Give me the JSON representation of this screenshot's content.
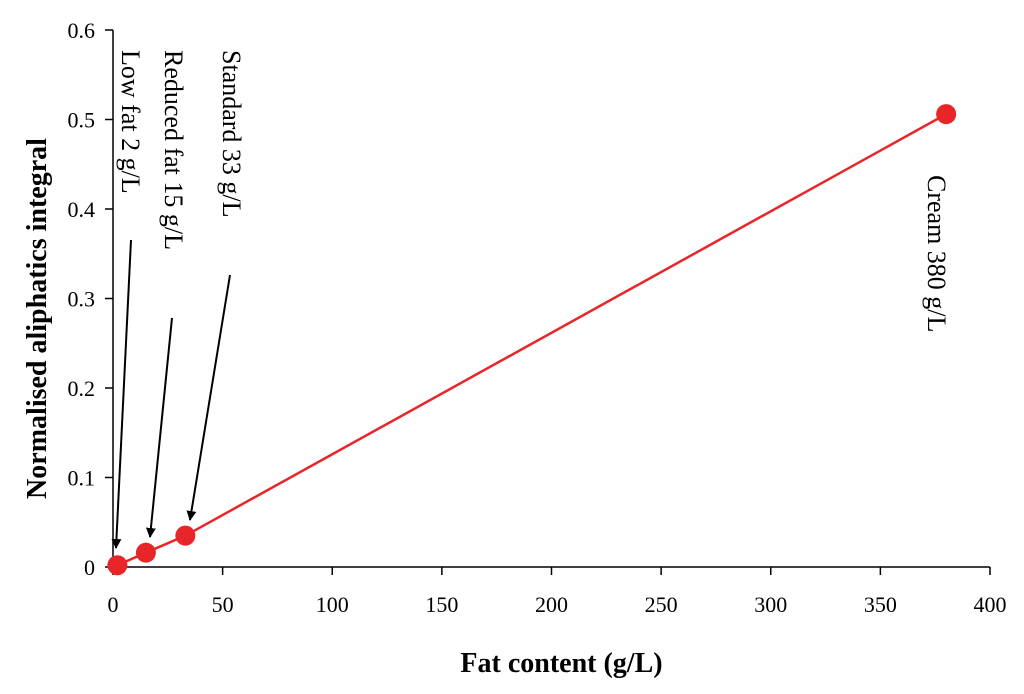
{
  "chart_data": {
    "type": "line",
    "title": "",
    "xlabel": "Fat content (g/L)",
    "ylabel": "Normalised aliphatics integral",
    "xlim": [
      0,
      400
    ],
    "ylim": [
      0,
      0.6
    ],
    "xticks": [
      "0",
      "50",
      "100",
      "150",
      "200",
      "250",
      "300",
      "350",
      "400"
    ],
    "yticks": [
      "0",
      "0.1",
      "0.2",
      "0.3",
      "0.4",
      "0.5",
      "0.6"
    ],
    "grid": false,
    "legend": "none",
    "series": [
      {
        "color": "#e8262a",
        "marker": "circle",
        "x": [
          2,
          15,
          33,
          380
        ],
        "y": [
          0.002,
          0.016,
          0.035,
          0.506
        ]
      }
    ],
    "annotations": [
      {
        "text": "Low fat  2 g/L",
        "x": 2,
        "y": 0.002,
        "arrow": true
      },
      {
        "text": "Reduced fat  15 g/L",
        "x": 15,
        "y": 0.016,
        "arrow": true
      },
      {
        "text": "Standard  33 g/L",
        "x": 33,
        "y": 0.035,
        "arrow": true
      },
      {
        "text": "Cream 380 g/L",
        "x": 380,
        "y": 0.506,
        "arrow": false
      }
    ]
  }
}
